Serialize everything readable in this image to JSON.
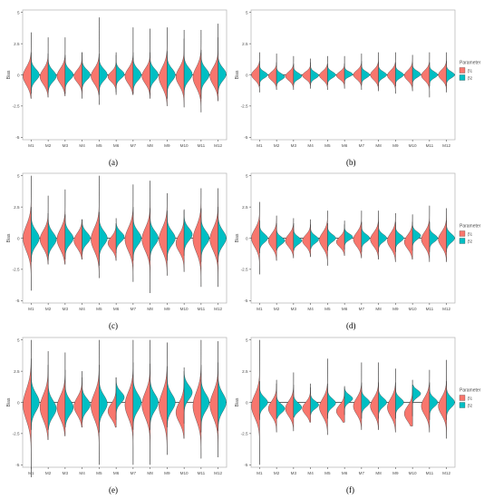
{
  "figure": {
    "colors": {
      "b1": "#F8766D",
      "b2": "#00BFC4",
      "axis": "#333333",
      "text": "#4D4D4D",
      "panel_border": "#B3B3B3",
      "whisker": "#555555"
    }
  },
  "chart_data": [
    {
      "type": "violin",
      "caption": "(a)",
      "ylabel": "Bias",
      "xlabel": "",
      "ylim": [
        -5.2,
        5.2
      ],
      "yticks": [
        5,
        2.5,
        0,
        -2.5,
        -5
      ],
      "ytick_labels": [
        "5",
        "2.5",
        "0",
        "-2.5",
        "-5"
      ],
      "hline": 0,
      "legend": null,
      "categories": [
        "M1",
        "M2",
        "M3",
        "M4",
        "M5",
        "M6",
        "M7",
        "M8",
        "M9",
        "M10",
        "M11",
        "M12"
      ],
      "series": [
        {
          "name": "β1",
          "lower": [
            -1.9,
            -1.8,
            -1.7,
            -1.9,
            -2.4,
            -1.6,
            -1.6,
            -1.9,
            -2.5,
            -2.6,
            -3.0,
            -2.1
          ],
          "upper": [
            3.4,
            3.0,
            3.0,
            1.8,
            4.6,
            1.8,
            3.8,
            3.7,
            3.8,
            2.9,
            3.6,
            3.0
          ],
          "center": [
            -0.1,
            -0.15,
            -0.1,
            -0.1,
            -0.1,
            -0.15,
            -0.1,
            -0.1,
            -0.2,
            -0.15,
            -0.2,
            -0.1
          ],
          "spread": [
            0.7,
            0.6,
            0.6,
            0.5,
            0.6,
            0.4,
            0.6,
            0.6,
            0.8,
            0.7,
            0.8,
            0.7
          ]
        },
        {
          "name": "β2",
          "lower": [
            -1.5,
            -1.4,
            -1.5,
            -1.3,
            -1.6,
            -1.4,
            -1.5,
            -1.6,
            -1.9,
            -1.6,
            -1.9,
            -1.5
          ],
          "upper": [
            1.8,
            1.7,
            1.6,
            1.8,
            1.7,
            1.6,
            1.8,
            1.8,
            1.9,
            3.6,
            2.0,
            4.1
          ],
          "center": [
            0.0,
            -0.1,
            0.0,
            0.0,
            0.0,
            0.05,
            0.0,
            0.0,
            0.0,
            0.05,
            0.0,
            0.05
          ],
          "spread": [
            0.45,
            0.45,
            0.4,
            0.4,
            0.45,
            0.35,
            0.45,
            0.45,
            0.5,
            0.5,
            0.5,
            0.5
          ]
        }
      ]
    },
    {
      "type": "violin",
      "caption": "(b)",
      "ylabel": "Bias",
      "xlabel": "",
      "ylim": [
        -5.2,
        5.2
      ],
      "yticks": [
        5,
        2.5,
        0,
        -2.5,
        -5
      ],
      "ytick_labels": [
        "5",
        "2.5",
        "0",
        "-2.5",
        "-5"
      ],
      "hline": 0,
      "legend": {
        "title": "Parameter",
        "labels": [
          "β1",
          "β2"
        ]
      },
      "categories": [
        "M1",
        "M2",
        "M3",
        "M4",
        "M5",
        "M6",
        "M7",
        "M8",
        "M9",
        "M10",
        "M11",
        "M12"
      ],
      "series": [
        {
          "name": "β1",
          "lower": [
            -1.4,
            -1.2,
            -1.2,
            -1.1,
            -1.2,
            -1.1,
            -1.2,
            -1.3,
            -1.5,
            -1.3,
            -1.8,
            -1.4
          ],
          "upper": [
            1.8,
            1.7,
            1.5,
            1.3,
            1.5,
            1.5,
            1.7,
            1.8,
            1.8,
            1.6,
            1.8,
            1.8
          ],
          "center": [
            0.0,
            -0.1,
            -0.1,
            -0.05,
            -0.05,
            -0.05,
            0.0,
            0.0,
            -0.05,
            -0.05,
            -0.05,
            0.0
          ],
          "spread": [
            0.4,
            0.35,
            0.35,
            0.3,
            0.35,
            0.3,
            0.35,
            0.4,
            0.4,
            0.4,
            0.4,
            0.4
          ]
        },
        {
          "name": "β2",
          "lower": [
            -0.9,
            -0.9,
            -0.8,
            -0.8,
            -0.8,
            -0.7,
            -0.8,
            -0.9,
            -0.9,
            -0.9,
            -0.9,
            -0.9
          ],
          "upper": [
            1.1,
            1.0,
            0.9,
            1.0,
            0.9,
            0.9,
            1.1,
            1.0,
            1.0,
            1.0,
            1.0,
            1.1
          ],
          "center": [
            0.0,
            -0.15,
            -0.1,
            -0.05,
            0.0,
            0.05,
            0.0,
            0.0,
            0.0,
            0.05,
            0.0,
            0.0
          ],
          "spread": [
            0.25,
            0.25,
            0.25,
            0.25,
            0.25,
            0.2,
            0.25,
            0.25,
            0.25,
            0.25,
            0.25,
            0.25
          ]
        }
      ]
    },
    {
      "type": "violin",
      "caption": "(c)",
      "ylabel": "Bias",
      "xlabel": "",
      "ylim": [
        -5.2,
        5.2
      ],
      "yticks": [
        5,
        2.5,
        0,
        -2.5,
        -5
      ],
      "ytick_labels": [
        "5",
        "2.5",
        "0",
        "-2.5",
        "-5"
      ],
      "hline": 0,
      "legend": null,
      "categories": [
        "M1",
        "M2",
        "M3",
        "M4",
        "M5",
        "M6",
        "M7",
        "M8",
        "M9",
        "M10",
        "M11",
        "M12"
      ],
      "series": [
        {
          "name": "β1",
          "lower": [
            -4.2,
            -2.1,
            -2.1,
            -1.7,
            -3.2,
            -1.8,
            -3.5,
            -4.4,
            -3.0,
            -2.7,
            -3.9,
            -3.9
          ],
          "upper": [
            5.0,
            3.4,
            3.9,
            1.5,
            5.0,
            1.2,
            4.3,
            4.6,
            3.6,
            2.3,
            4.0,
            4.0
          ],
          "center": [
            0.0,
            -0.1,
            -0.1,
            -0.2,
            -0.1,
            -0.4,
            -0.1,
            -0.1,
            -0.1,
            -0.4,
            -0.1,
            -0.1
          ],
          "spread": [
            1.0,
            0.7,
            0.8,
            0.6,
            0.9,
            0.5,
            0.9,
            0.9,
            0.9,
            0.7,
            1.0,
            0.9
          ]
        },
        {
          "name": "β2",
          "lower": [
            -1.9,
            -1.8,
            -1.7,
            -1.3,
            -2.2,
            -1.2,
            -1.8,
            -1.8,
            -1.8,
            -1.4,
            -1.9,
            -1.9
          ],
          "upper": [
            2.5,
            2.0,
            1.9,
            1.5,
            2.1,
            1.6,
            2.5,
            2.4,
            2.2,
            2.2,
            2.4,
            2.5
          ],
          "center": [
            0.0,
            -0.1,
            0.0,
            0.0,
            0.0,
            0.1,
            0.0,
            0.0,
            0.0,
            0.3,
            0.0,
            0.0
          ],
          "spread": [
            0.6,
            0.55,
            0.5,
            0.45,
            0.55,
            0.4,
            0.55,
            0.55,
            0.55,
            0.5,
            0.55,
            0.6
          ]
        }
      ]
    },
    {
      "type": "violin",
      "caption": "(d)",
      "ylabel": "Bias",
      "xlabel": "",
      "ylim": [
        -5.2,
        5.2
      ],
      "yticks": [
        5,
        2.5,
        0,
        -2.5,
        -5
      ],
      "ytick_labels": [
        "5",
        "2.5",
        "0",
        "-2.5",
        "-5"
      ],
      "hline": 0,
      "legend": {
        "title": "Parameter",
        "labels": [
          "β1",
          "β2"
        ]
      },
      "categories": [
        "M1",
        "M2",
        "M3",
        "M4",
        "M5",
        "M6",
        "M7",
        "M8",
        "M9",
        "M10",
        "M11",
        "M12"
      ],
      "series": [
        {
          "name": "β1",
          "lower": [
            -2.9,
            -1.8,
            -1.6,
            -1.5,
            -2.2,
            -1.4,
            -1.6,
            -1.7,
            -1.9,
            -1.7,
            -1.9,
            -1.9
          ],
          "upper": [
            2.9,
            1.8,
            1.6,
            1.5,
            2.2,
            1.4,
            2.2,
            2.2,
            2.0,
            1.9,
            2.6,
            2.4
          ],
          "center": [
            0.0,
            -0.2,
            -0.2,
            -0.2,
            -0.15,
            -0.3,
            -0.1,
            -0.1,
            -0.2,
            -0.3,
            -0.1,
            -0.1
          ],
          "spread": [
            0.7,
            0.55,
            0.5,
            0.45,
            0.6,
            0.4,
            0.55,
            0.55,
            0.6,
            0.55,
            0.6,
            0.6
          ]
        },
        {
          "name": "β2",
          "lower": [
            -1.2,
            -1.0,
            -1.0,
            -0.9,
            -1.0,
            -0.9,
            -1.1,
            -1.1,
            -1.1,
            -1.0,
            -1.1,
            -1.1
          ],
          "upper": [
            1.4,
            1.2,
            1.2,
            1.1,
            1.2,
            1.1,
            1.3,
            1.3,
            1.3,
            1.3,
            1.3,
            1.4
          ],
          "center": [
            0.0,
            -0.2,
            -0.2,
            -0.1,
            0.0,
            0.1,
            0.0,
            0.0,
            0.0,
            0.2,
            0.0,
            0.0
          ],
          "spread": [
            0.35,
            0.3,
            0.3,
            0.3,
            0.3,
            0.25,
            0.3,
            0.3,
            0.3,
            0.3,
            0.3,
            0.35
          ]
        }
      ]
    },
    {
      "type": "violin",
      "caption": "(e)",
      "ylabel": "Bias",
      "xlabel": "",
      "ylim": [
        -5.2,
        5.2
      ],
      "yticks": [
        5,
        2.5,
        0,
        -2.5,
        -5
      ],
      "ytick_labels": [
        "5",
        "2.5",
        "0",
        "-2.5",
        "-5"
      ],
      "hline": 0,
      "legend": null,
      "categories": [
        "M1",
        "M2",
        "M3",
        "M4",
        "M5",
        "M6",
        "M7",
        "M8",
        "M9",
        "M10",
        "M11",
        "M12"
      ],
      "series": [
        {
          "name": "β1",
          "lower": [
            -6.0,
            -3.0,
            -2.7,
            -2.0,
            -5.0,
            -2.0,
            -5.0,
            -5.0,
            -4.2,
            -2.9,
            -4.5,
            -4.4
          ],
          "upper": [
            5.0,
            4.1,
            4.0,
            2.5,
            5.0,
            2.0,
            5.0,
            5.0,
            4.8,
            2.5,
            5.0,
            4.9
          ],
          "center": [
            -0.2,
            -0.4,
            -0.4,
            -0.3,
            -0.3,
            -0.7,
            -0.2,
            -0.2,
            -0.3,
            -0.8,
            -0.3,
            -0.2
          ],
          "spread": [
            1.2,
            1.0,
            0.9,
            0.7,
            1.0,
            0.6,
            1.0,
            1.0,
            1.1,
            0.8,
            1.1,
            1.0
          ]
        },
        {
          "name": "β2",
          "lower": [
            -2.2,
            -2.2,
            -2.0,
            -1.6,
            -2.4,
            -1.4,
            -2.2,
            -2.2,
            -2.0,
            -1.7,
            -2.4,
            -2.3
          ],
          "upper": [
            3.5,
            3.0,
            2.6,
            2.0,
            3.0,
            2.0,
            3.2,
            3.1,
            2.9,
            2.8,
            3.0,
            3.2
          ],
          "center": [
            0.0,
            -0.5,
            -0.4,
            -0.2,
            -0.1,
            0.4,
            0.0,
            0.0,
            0.0,
            0.8,
            0.0,
            0.0
          ],
          "spread": [
            0.7,
            0.65,
            0.6,
            0.5,
            0.65,
            0.45,
            0.65,
            0.65,
            0.65,
            0.55,
            0.65,
            0.7
          ]
        }
      ]
    },
    {
      "type": "violin",
      "caption": "(f)",
      "ylabel": "Bias",
      "xlabel": "",
      "ylim": [
        -5.2,
        5.2
      ],
      "yticks": [
        5,
        2.5,
        0,
        -2.5,
        -5
      ],
      "ytick_labels": [
        "5",
        "2.5",
        "0",
        "-2.5",
        "-5"
      ],
      "hline": 0,
      "legend": {
        "title": "Parameter",
        "labels": [
          "β1",
          "β2"
        ]
      },
      "categories": [
        "M1",
        "M2",
        "M3",
        "M4",
        "M5",
        "M6",
        "M7",
        "M8",
        "M9",
        "M10",
        "M11",
        "M12"
      ],
      "series": [
        {
          "name": "β1",
          "lower": [
            -5.0,
            -2.4,
            -2.3,
            -1.6,
            -2.6,
            -1.6,
            -2.2,
            -2.2,
            -2.4,
            -1.9,
            -2.4,
            -2.9
          ],
          "upper": [
            5.0,
            1.8,
            2.4,
            1.5,
            3.5,
            1.3,
            3.2,
            3.2,
            2.7,
            1.8,
            2.6,
            3.4
          ],
          "center": [
            -0.3,
            -0.5,
            -0.5,
            -0.5,
            -0.4,
            -0.7,
            -0.3,
            -0.3,
            -0.4,
            -0.9,
            -0.3,
            -0.3
          ],
          "spread": [
            0.9,
            0.6,
            0.6,
            0.5,
            0.7,
            0.5,
            0.65,
            0.65,
            0.7,
            0.6,
            0.7,
            0.7
          ]
        },
        {
          "name": "β2",
          "lower": [
            -1.4,
            -1.3,
            -1.2,
            -1.0,
            -1.3,
            -1.0,
            -1.3,
            -1.3,
            -1.3,
            -1.1,
            -1.4,
            -1.4
          ],
          "upper": [
            1.7,
            1.5,
            1.4,
            1.2,
            1.5,
            1.2,
            1.6,
            1.6,
            1.6,
            1.4,
            1.6,
            1.7
          ],
          "center": [
            0.0,
            -0.5,
            -0.4,
            -0.2,
            -0.05,
            0.3,
            0.0,
            0.0,
            0.0,
            0.7,
            0.0,
            0.0
          ],
          "spread": [
            0.4,
            0.35,
            0.35,
            0.3,
            0.35,
            0.3,
            0.35,
            0.35,
            0.35,
            0.3,
            0.35,
            0.4
          ]
        }
      ]
    }
  ]
}
